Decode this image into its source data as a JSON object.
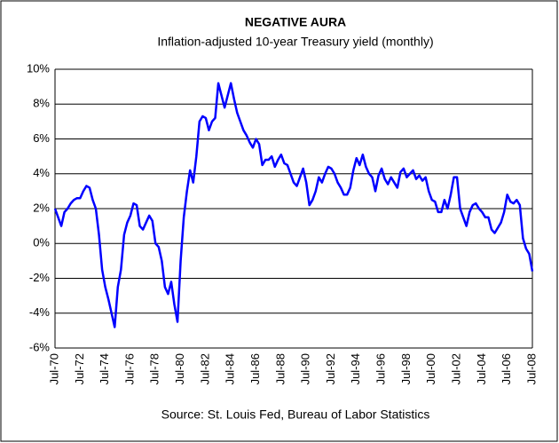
{
  "chart_data": {
    "type": "line",
    "title": "NEGATIVE AURA",
    "subtitle": "Inflation-adjusted 10-year Treasury yield (monthly)",
    "source": "Source: St. Louis Fed, Bureau of Labor Statistics",
    "categories": [
      "Jul-70",
      null,
      null,
      null,
      null,
      null,
      null,
      null,
      "Jul-72",
      null,
      null,
      null,
      null,
      null,
      null,
      null,
      "Jul-74",
      null,
      null,
      null,
      null,
      null,
      null,
      null,
      "Jul-76",
      null,
      null,
      null,
      null,
      null,
      null,
      null,
      "Jul-78",
      null,
      null,
      null,
      null,
      null,
      null,
      null,
      "Jul-80",
      null,
      null,
      null,
      null,
      null,
      null,
      null,
      "Jul-82",
      null,
      null,
      null,
      null,
      null,
      null,
      null,
      "Jul-84",
      null,
      null,
      null,
      null,
      null,
      null,
      null,
      "Jul-86",
      null,
      null,
      null,
      null,
      null,
      null,
      null,
      "Jul-88",
      null,
      null,
      null,
      null,
      null,
      null,
      null,
      "Jul-90",
      null,
      null,
      null,
      null,
      null,
      null,
      null,
      "Jul-92",
      null,
      null,
      null,
      null,
      null,
      null,
      null,
      "Jul-94",
      null,
      null,
      null,
      null,
      null,
      null,
      null,
      "Jul-96",
      null,
      null,
      null,
      null,
      null,
      null,
      null,
      "Jul-98",
      null,
      null,
      null,
      null,
      null,
      null,
      null,
      "Jul-00",
      null,
      null,
      null,
      null,
      null,
      null,
      null,
      "Jul-02",
      null,
      null,
      null,
      null,
      null,
      null,
      null,
      "Jul-04",
      null,
      null,
      null,
      null,
      null,
      null,
      null,
      "Jul-06",
      null,
      null,
      null,
      null,
      null,
      null,
      null,
      "Jul-08"
    ],
    "series": [
      {
        "color": "#0000ff",
        "values": [
          2.0,
          1.5,
          1.0,
          1.8,
          2.0,
          2.3,
          2.5,
          2.6,
          2.6,
          3.0,
          3.3,
          3.2,
          2.5,
          2.0,
          0.5,
          -1.5,
          -2.5,
          -3.2,
          -4.0,
          -4.8,
          -2.5,
          -1.5,
          0.5,
          1.2,
          1.6,
          2.3,
          2.2,
          1.0,
          0.8,
          1.2,
          1.6,
          1.3,
          0.0,
          -0.2,
          -1.0,
          -2.5,
          -2.9,
          -2.2,
          -3.5,
          -4.5,
          -1.0,
          1.5,
          3.0,
          4.2,
          3.5,
          5.0,
          7.0,
          7.3,
          7.2,
          6.5,
          7.0,
          7.2,
          9.2,
          8.5,
          7.8,
          8.5,
          9.2,
          8.3,
          7.5,
          7.0,
          6.5,
          6.2,
          5.8,
          5.5,
          6.0,
          5.7,
          4.5,
          4.8,
          4.8,
          5.0,
          4.4,
          4.8,
          5.1,
          4.6,
          4.5,
          4.0,
          3.5,
          3.3,
          3.8,
          4.3,
          3.5,
          2.2,
          2.5,
          3.0,
          3.8,
          3.5,
          4.0,
          4.4,
          4.3,
          4.0,
          3.5,
          3.2,
          2.8,
          2.8,
          3.2,
          4.2,
          4.9,
          4.5,
          5.1,
          4.4,
          4.0,
          3.8,
          3.0,
          3.9,
          4.3,
          3.7,
          3.4,
          3.8,
          3.5,
          3.2,
          4.1,
          4.3,
          3.8,
          4.0,
          4.2,
          3.7,
          3.9,
          3.6,
          3.8,
          3.0,
          2.5,
          2.4,
          1.8,
          1.8,
          2.5,
          2.0,
          2.8,
          3.8,
          3.8,
          2.0,
          1.5,
          1.0,
          1.8,
          2.2,
          2.3,
          2.0,
          1.8,
          1.5,
          1.5,
          0.8,
          0.6,
          0.9,
          1.2,
          1.8,
          2.8,
          2.4,
          2.3,
          2.5,
          2.2,
          0.3,
          -0.3,
          -0.6,
          -1.6
        ]
      }
    ],
    "ylim": [
      -6,
      10
    ],
    "yticks": [
      {
        "value": -6,
        "label": "-6%"
      },
      {
        "value": -4,
        "label": "-4%"
      },
      {
        "value": -2,
        "label": "-2%"
      },
      {
        "value": 0,
        "label": "0%"
      },
      {
        "value": 2,
        "label": "2%"
      },
      {
        "value": 4,
        "label": "4%"
      },
      {
        "value": 6,
        "label": "6%"
      },
      {
        "value": 8,
        "label": "8%"
      },
      {
        "value": 10,
        "label": "10%"
      }
    ],
    "grid": true
  }
}
